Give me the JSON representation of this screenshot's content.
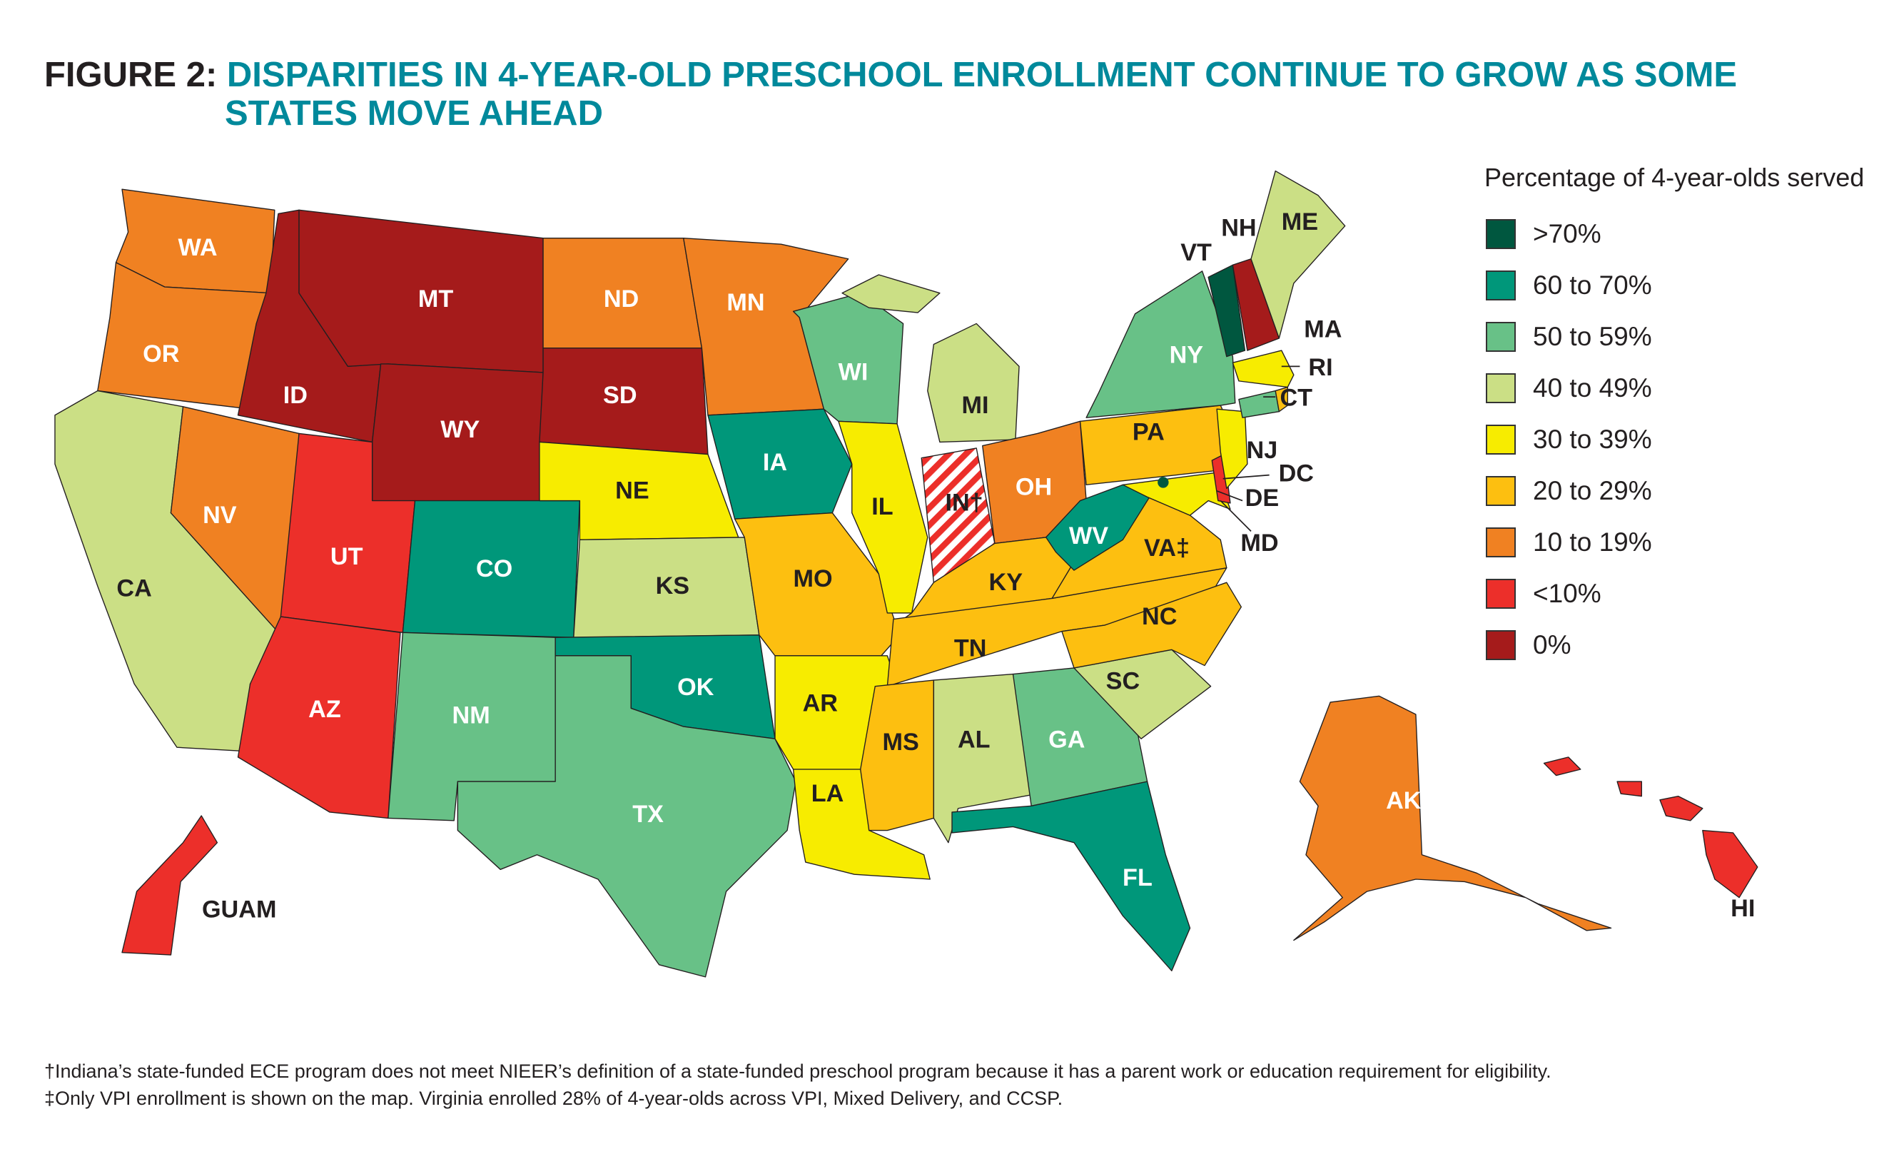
{
  "title": {
    "figure": "FIGURE 2:",
    "line1": "DISPARITIES IN 4-YEAR-OLD PRESCHOOL ENROLLMENT CONTINUE TO GROW AS SOME",
    "line2": "STATES MOVE AHEAD"
  },
  "chart_data": {
    "type": "choropleth",
    "title": "DISPARITIES IN 4-YEAR-OLD PRESCHOOL ENROLLMENT CONTINUE TO GROW AS SOME STATES MOVE AHEAD",
    "legend_title": "Percentage of 4-year-olds served",
    "legend_placement": "right",
    "bins": [
      {
        "label": ">70%",
        "color": "#00573f"
      },
      {
        "label": "60 to 70%",
        "color": "#00977a"
      },
      {
        "label": "50 to 59%",
        "color": "#68c187"
      },
      {
        "label": "40 to 49%",
        "color": "#cbdf85"
      },
      {
        "label": "30 to 39%",
        "color": "#f7ec00"
      },
      {
        "label": "20 to 29%",
        "color": "#fdbf10"
      },
      {
        "label": "10 to 19%",
        "color": "#f08122"
      },
      {
        "label": "<10%",
        "color": "#ec2f2a"
      },
      {
        "label": "0%",
        "color": "#a51b1b"
      }
    ],
    "states": {
      "WA": {
        "label": "WA",
        "bin": 6
      },
      "OR": {
        "label": "OR",
        "bin": 6
      },
      "CA": {
        "label": "CA",
        "bin": 3
      },
      "NV": {
        "label": "NV",
        "bin": 6
      },
      "ID": {
        "label": "ID",
        "bin": 8
      },
      "MT": {
        "label": "MT",
        "bin": 8
      },
      "WY": {
        "label": "WY",
        "bin": 8
      },
      "UT": {
        "label": "UT",
        "bin": 7
      },
      "CO": {
        "label": "CO",
        "bin": 1
      },
      "AZ": {
        "label": "AZ",
        "bin": 7
      },
      "NM": {
        "label": "NM",
        "bin": 2
      },
      "ND": {
        "label": "ND",
        "bin": 6
      },
      "SD": {
        "label": "SD",
        "bin": 8
      },
      "NE": {
        "label": "NE",
        "bin": 4
      },
      "KS": {
        "label": "KS",
        "bin": 3
      },
      "OK": {
        "label": "OK",
        "bin": 1
      },
      "TX": {
        "label": "TX",
        "bin": 2
      },
      "MN": {
        "label": "MN",
        "bin": 6
      },
      "IA": {
        "label": "IA",
        "bin": 1
      },
      "MO": {
        "label": "MO",
        "bin": 5
      },
      "AR": {
        "label": "AR",
        "bin": 4
      },
      "LA": {
        "label": "LA",
        "bin": 4
      },
      "WI": {
        "label": "WI",
        "bin": 2
      },
      "IL": {
        "label": "IL",
        "bin": 4
      },
      "MI": {
        "label": "MI",
        "bin": 3
      },
      "IN": {
        "label": "IN†",
        "bin": null,
        "note": "striped"
      },
      "OH": {
        "label": "OH",
        "bin": 6
      },
      "KY": {
        "label": "KY",
        "bin": 5
      },
      "TN": {
        "label": "TN",
        "bin": 5
      },
      "MS": {
        "label": "MS",
        "bin": 5
      },
      "AL": {
        "label": "AL",
        "bin": 3
      },
      "GA": {
        "label": "GA",
        "bin": 2
      },
      "FL": {
        "label": "FL",
        "bin": 1
      },
      "SC": {
        "label": "SC",
        "bin": 3
      },
      "NC": {
        "label": "NC",
        "bin": 5
      },
      "VA": {
        "label": "VA‡",
        "bin": 5
      },
      "WV": {
        "label": "WV",
        "bin": 1
      },
      "PA": {
        "label": "PA",
        "bin": 5
      },
      "NY": {
        "label": "NY",
        "bin": 2
      },
      "MD": {
        "label": "MD",
        "bin": 4
      },
      "DE": {
        "label": "DE",
        "bin": 7
      },
      "DC": {
        "label": "DC",
        "bin": 0
      },
      "NJ": {
        "label": "NJ",
        "bin": 4
      },
      "CT": {
        "label": "CT",
        "bin": 2
      },
      "RI": {
        "label": "RI",
        "bin": 5
      },
      "MA": {
        "label": "MA",
        "bin": 4
      },
      "VT": {
        "label": "VT",
        "bin": 0
      },
      "NH": {
        "label": "NH",
        "bin": 8
      },
      "ME": {
        "label": "ME",
        "bin": 3
      },
      "AK": {
        "label": "AK",
        "bin": 6
      },
      "HI": {
        "label": "HI",
        "bin": 7
      },
      "GUAM": {
        "label": "GUAM",
        "bin": 7
      }
    }
  },
  "legend": {
    "title": "Percentage of 4-year-olds served",
    "items": [
      ">70%",
      "60 to 70%",
      "50 to 59%",
      "40 to 49%",
      "30 to 39%",
      "20 to 29%",
      "10 to 19%",
      "<10%",
      "0%"
    ]
  },
  "footnotes": [
    "†Indiana’s state-funded ECE program does not meet NIEER’s definition of a state-funded preschool program because it has a parent work or education requirement for eligibility.",
    "‡Only VPI enrollment is shown on the map. Virginia enrolled 28% of 4-year-olds across VPI, Mixed Delivery, and CCSP."
  ]
}
